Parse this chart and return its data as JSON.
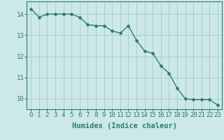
{
  "x": [
    0,
    1,
    2,
    3,
    4,
    5,
    6,
    7,
    8,
    9,
    10,
    11,
    12,
    13,
    14,
    15,
    16,
    17,
    18,
    19,
    20,
    21,
    22,
    23
  ],
  "y": [
    14.25,
    13.85,
    14.0,
    14.0,
    14.0,
    14.0,
    13.85,
    13.5,
    13.45,
    13.45,
    13.2,
    13.1,
    13.45,
    12.75,
    12.25,
    12.15,
    11.55,
    11.2,
    10.5,
    10.0,
    9.95,
    9.95,
    9.95,
    9.7
  ],
  "line_color": "#2d7d6e",
  "marker": "D",
  "marker_size": 2.0,
  "bg_color": "#cce8e8",
  "grid_color": "#aacfcf",
  "axis_color": "#2d7d6e",
  "tick_color": "#2d7d6e",
  "xlabel": "Humidex (Indice chaleur)",
  "xlim": [
    -0.5,
    23.5
  ],
  "ylim": [
    9.5,
    14.6
  ],
  "yticks": [
    10,
    11,
    12,
    13,
    14
  ],
  "xticks": [
    0,
    1,
    2,
    3,
    4,
    5,
    6,
    7,
    8,
    9,
    10,
    11,
    12,
    13,
    14,
    15,
    16,
    17,
    18,
    19,
    20,
    21,
    22,
    23
  ],
  "xlabel_fontsize": 7.5,
  "tick_fontsize": 6.5,
  "line_width": 1.0
}
